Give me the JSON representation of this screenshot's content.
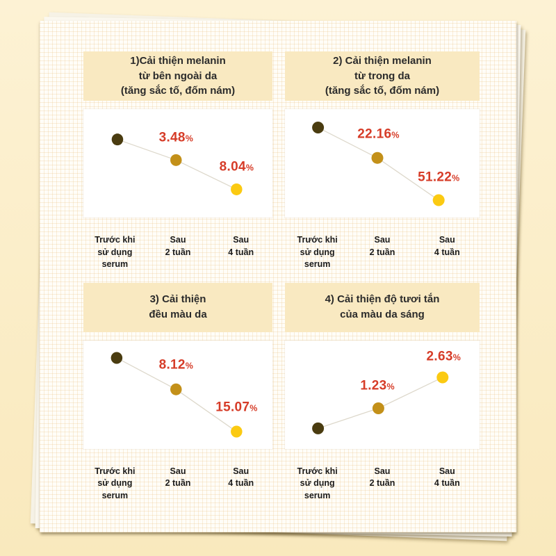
{
  "page": {
    "background_top": "#fdf2d4",
    "background_bottom": "#f9e9bd",
    "paper_color": "#fffdf8",
    "grid_line_color": "rgba(231,190,122,0.26)"
  },
  "colors": {
    "banner_bg": "#f9e9c1",
    "title_text": "#2b2b2b",
    "axis_label_text": "#1b1b1b",
    "percent_red": "#d63c28",
    "connector_line": "#ddd8cb",
    "dots": {
      "before": "#4a3c10",
      "week2": "#c39019",
      "week4": "#fbca12"
    }
  },
  "percent_suffix": "%",
  "x_labels_display": [
    "Trước khi\nsử dụng\nserum",
    "Sau\n2 tuần",
    "Sau\n4 tuần"
  ],
  "chart_data": [
    {
      "type": "line",
      "title": "1)Cải thiện melanin\ntừ bên ngoài da\n(tăng sắc tố, đốm nám)",
      "categories": [
        "Trước khi sử dụng serum",
        "Sau 2 tuần",
        "Sau 4 tuần"
      ],
      "values": [
        null,
        3.48,
        8.04
      ],
      "unit": "%",
      "trend": "decreasing",
      "points": [
        {
          "fx": 0.18,
          "fy": 0.28,
          "color": "before"
        },
        {
          "fx": 0.49,
          "fy": 0.47,
          "color": "week2"
        },
        {
          "fx": 0.81,
          "fy": 0.74,
          "color": "week4"
        }
      ],
      "labels": [
        {
          "value": "3.48",
          "suffix": "%",
          "fx": 0.49,
          "fy": 0.26
        },
        {
          "value": "8.04",
          "suffix": "%",
          "fx": 0.81,
          "fy": 0.53
        }
      ]
    },
    {
      "type": "line",
      "title": "2) Cải thiện melanin\ntừ trong da\n(tăng sắc tố, đốm nám)",
      "categories": [
        "Trước khi sử dụng serum",
        "Sau 2 tuần",
        "Sau 4 tuần"
      ],
      "values": [
        null,
        22.16,
        51.22
      ],
      "unit": "%",
      "trend": "decreasing",
      "points": [
        {
          "fx": 0.17,
          "fy": 0.17,
          "color": "before"
        },
        {
          "fx": 0.475,
          "fy": 0.45,
          "color": "week2"
        },
        {
          "fx": 0.79,
          "fy": 0.84,
          "color": "week4"
        }
      ],
      "labels": [
        {
          "value": "22.16",
          "suffix": "%",
          "fx": 0.48,
          "fy": 0.23
        },
        {
          "value": "51.22",
          "suffix": "%",
          "fx": 0.79,
          "fy": 0.63
        }
      ]
    },
    {
      "type": "line",
      "title": "3) Cải thiện\nđều màu da",
      "categories": [
        "Trước khi sử dụng serum",
        "Sau 2 tuần",
        "Sau 4 tuần"
      ],
      "values": [
        null,
        8.12,
        15.07
      ],
      "unit": "%",
      "trend": "decreasing",
      "points": [
        {
          "fx": 0.176,
          "fy": 0.16,
          "color": "before"
        },
        {
          "fx": 0.49,
          "fy": 0.45,
          "color": "week2"
        },
        {
          "fx": 0.81,
          "fy": 0.84,
          "color": "week4"
        }
      ],
      "labels": [
        {
          "value": "8.12",
          "suffix": "%",
          "fx": 0.49,
          "fy": 0.23
        },
        {
          "value": "15.07",
          "suffix": "%",
          "fx": 0.81,
          "fy": 0.62
        }
      ]
    },
    {
      "type": "line",
      "title": "4) Cải thiện độ tươi tắn\ncủa màu da sáng",
      "categories": [
        "Trước khi sử dụng serum",
        "Sau 2 tuần",
        "Sau 4 tuần"
      ],
      "values": [
        null,
        1.23,
        2.63
      ],
      "unit": "%",
      "trend": "increasing",
      "points": [
        {
          "fx": 0.17,
          "fy": 0.81,
          "color": "before"
        },
        {
          "fx": 0.48,
          "fy": 0.625,
          "color": "week2"
        },
        {
          "fx": 0.81,
          "fy": 0.34,
          "color": "week4"
        }
      ],
      "labels": [
        {
          "value": "1.23",
          "suffix": "%",
          "fx": 0.475,
          "fy": 0.42
        },
        {
          "value": "2.63",
          "suffix": "%",
          "fx": 0.815,
          "fy": 0.15
        }
      ]
    }
  ]
}
